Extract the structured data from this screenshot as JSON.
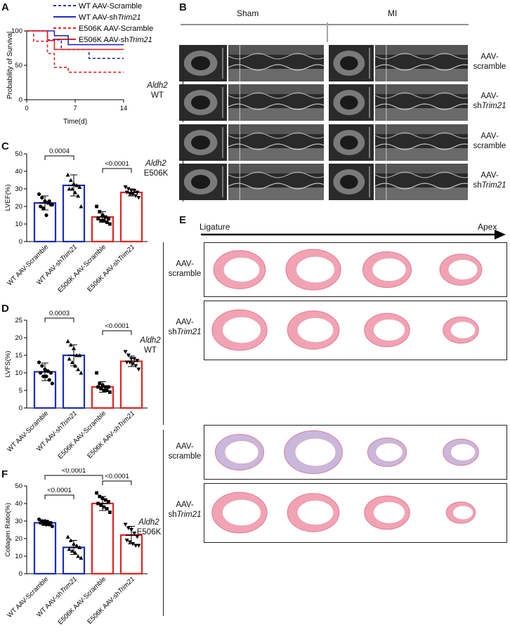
{
  "panels": {
    "A": "A",
    "B": "B",
    "C": "C",
    "D": "D",
    "E": "E",
    "F": "F"
  },
  "colors": {
    "wt": "#1a2bc7",
    "e506k": "#e8211d",
    "bg_echo": "#5c5c5c",
    "tissue": "#f2a3b3"
  },
  "km": {
    "ylabel": "Probability of Survival",
    "xlabel": "Time(d)",
    "xticks": [
      "0",
      "7",
      "14"
    ],
    "yticks": [
      "0",
      "50",
      "100"
    ],
    "legend": [
      {
        "name": "WT AAV-Scramble",
        "style": "dashed",
        "color": "blue"
      },
      {
        "name": "WT AAV-shTrim21",
        "style": "solid",
        "color": "blue"
      },
      {
        "name": "E506K AAV-Scramble",
        "style": "dashed",
        "color": "red"
      },
      {
        "name": "E506K AAV-shTrim21",
        "style": "solid",
        "color": "red"
      }
    ],
    "legend_text": {
      "l1": "WT AAV-Scramble",
      "l2_pre": "WT AAV-sh",
      "l2_it": "Trim21",
      "l3": "E506K AAV-Scramble",
      "l4_pre": "E506K AAV-sh",
      "l4_it": "Trim21"
    }
  },
  "echo": {
    "sham": "Sham",
    "mi": "MI",
    "group_wt_it": "Aldh2",
    "group_wt": "WT",
    "group_e_it": "Aldh2",
    "group_e": "E506K",
    "rows": [
      {
        "l1": "AAV-",
        "l2": "scramble"
      },
      {
        "l1": "AAV-",
        "l2_pre": "sh",
        "l2_it": "Trim21"
      },
      {
        "l1": "AAV-",
        "l2": "scramble"
      },
      {
        "l1": "AAV-",
        "l2_pre": "sh",
        "l2_it": "Trim21"
      }
    ]
  },
  "masson": {
    "ligature": "Ligature",
    "apex": "Apex",
    "group_wt_it": "Aldh2",
    "group_wt": "WT",
    "group_e_it": "Aldh2",
    "group_e": "E506K",
    "rows": [
      {
        "l1": "AAV-",
        "l2": "scramble"
      },
      {
        "l1": "AAV-",
        "l2_pre": "sh",
        "l2_it": "Trim21"
      },
      {
        "l1": "AAV-",
        "l2": "scramble"
      },
      {
        "l1": "AAV-",
        "l2_pre": "sh",
        "l2_it": "Trim21"
      }
    ]
  },
  "bars": {
    "xcats": [
      "WT AAV-Scramble",
      "WT AAV-shTrim21",
      "E506K AAV-Scramble",
      "E506K AAV-shTrim21"
    ],
    "xcat_parts": [
      {
        "pre": "WT AAV-Scramble",
        "it": ""
      },
      {
        "pre": "WT AAV-sh",
        "it": "Trim21"
      },
      {
        "pre": "E506K AAV-Scramble",
        "it": ""
      },
      {
        "pre": "E506K AAV-sh",
        "it": "Trim21"
      }
    ]
  },
  "chart_data": [
    {
      "type": "line",
      "panel": "A",
      "xlabel": "Time(d)",
      "ylabel": "Probability of Survival",
      "xlim": [
        0,
        14
      ],
      "ylim": [
        0,
        100
      ],
      "series": [
        {
          "name": "WT AAV-Scramble",
          "x": [
            0,
            3,
            5,
            9,
            14
          ],
          "y": [
            100,
            87,
            73,
            60,
            60
          ]
        },
        {
          "name": "WT AAV-shTrim21",
          "x": [
            0,
            4,
            6,
            14
          ],
          "y": [
            100,
            93,
            80,
            80
          ]
        },
        {
          "name": "E506K AAV-Scramble",
          "x": [
            0,
            1,
            3,
            4,
            6,
            14
          ],
          "y": [
            100,
            85,
            67,
            47,
            40,
            40
          ]
        },
        {
          "name": "E506K AAV-shTrim21",
          "x": [
            0,
            3,
            4,
            14
          ],
          "y": [
            100,
            86,
            73,
            73
          ]
        }
      ]
    },
    {
      "type": "bar",
      "panel": "C",
      "ylabel": "LVEF(%)",
      "ylim": [
        0,
        50
      ],
      "yticks": [
        0,
        10,
        20,
        30,
        40,
        50
      ],
      "categories": [
        "WT AAV-Scramble",
        "WT AAV-shTrim21",
        "E506K AAV-Scramble",
        "E506K AAV-shTrim21"
      ],
      "values": [
        22,
        32,
        14,
        28
      ],
      "errors": [
        4,
        6,
        3,
        2
      ],
      "points": [
        [
          27,
          25,
          23,
          22,
          21,
          20,
          19,
          15,
          23,
          21
        ],
        [
          38,
          35,
          33,
          32,
          31,
          30,
          30,
          28,
          26,
          20
        ],
        [
          20,
          17,
          15,
          14,
          13,
          13,
          12,
          12,
          11,
          10
        ],
        [
          31,
          30,
          29,
          29,
          28,
          28,
          27,
          27,
          26,
          25
        ]
      ],
      "comparisons": [
        {
          "between": [
            0,
            1
          ],
          "label": "0.0004"
        },
        {
          "between": [
            2,
            3
          ],
          "label": "<0.0001"
        }
      ]
    },
    {
      "type": "bar",
      "panel": "D",
      "ylabel": "LVFS(%)",
      "ylim": [
        0,
        25
      ],
      "yticks": [
        0,
        5,
        10,
        15,
        20,
        25
      ],
      "categories": [
        "WT AAV-Scramble",
        "WT AAV-shTrim21",
        "E506K AAV-Scramble",
        "E506K AAV-shTrim21"
      ],
      "values": [
        10.3,
        15,
        6,
        13.3
      ],
      "errors": [
        2.5,
        3,
        1.5,
        1.5
      ],
      "points": [
        [
          13,
          12,
          11,
          10.5,
          10,
          10,
          9,
          9,
          8,
          7
        ],
        [
          19,
          18,
          17,
          15,
          15,
          14,
          13,
          12,
          11,
          10
        ],
        [
          10,
          7,
          6.5,
          6,
          6,
          6,
          5.5,
          5,
          5,
          4.5
        ],
        [
          16,
          15,
          14,
          14,
          13.5,
          13,
          13,
          12.5,
          12,
          11
        ]
      ],
      "comparisons": [
        {
          "between": [
            0,
            1
          ],
          "label": "0.0003"
        },
        {
          "between": [
            2,
            3
          ],
          "label": "<0.0001"
        }
      ]
    },
    {
      "type": "bar",
      "panel": "F",
      "ylabel": "Collagen Ratio(%)",
      "ylim": [
        0,
        50
      ],
      "yticks": [
        0,
        10,
        20,
        30,
        40,
        50
      ],
      "categories": [
        "WT AAV-Scramble",
        "WT AAV-shTrim21",
        "E506K AAV-Scramble",
        "E506K AAV-shTrim21"
      ],
      "values": [
        29,
        15,
        40,
        22
      ],
      "errors": [
        1.5,
        4,
        4,
        5
      ],
      "points": [
        [
          31,
          30,
          30,
          29.5,
          29,
          29,
          28.5,
          28,
          28,
          27
        ],
        [
          21,
          19,
          17,
          16,
          15,
          14,
          13,
          12,
          10,
          9
        ],
        [
          46,
          44,
          43,
          42,
          41,
          40,
          39,
          38,
          37,
          35
        ],
        [
          28,
          26,
          25,
          23,
          21,
          19,
          18,
          17,
          16,
          16
        ]
      ],
      "comparisons": [
        {
          "between": [
            0,
            1
          ],
          "label": "<0.0001"
        },
        {
          "between": [
            0,
            2
          ],
          "label": "<0.0001"
        },
        {
          "between": [
            2,
            3
          ],
          "label": "<0.0001"
        }
      ]
    }
  ]
}
